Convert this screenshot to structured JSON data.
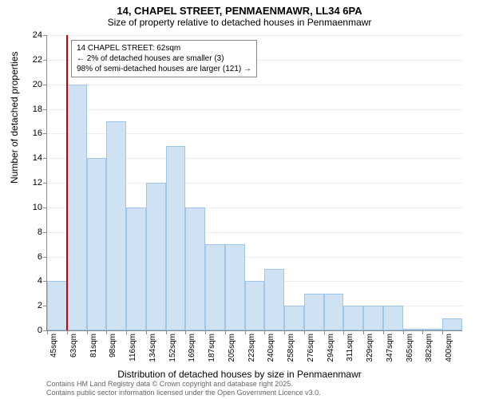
{
  "title_line1": "14, CHAPEL STREET, PENMAENMAWR, LL34 6PA",
  "title_line2": "Size of property relative to detached houses in Penmaenmawr",
  "ylabel": "Number of detached properties",
  "xlabel": "Distribution of detached houses by size in Penmaenmawr",
  "footer_line1": "Contains HM Land Registry data © Crown copyright and database right 2025.",
  "footer_line2": "Contains public sector information licensed under the Open Government Licence v3.0.",
  "chart": {
    "type": "histogram",
    "bar_fill": "#cfe2f3",
    "bar_stroke": "#9fc5e8",
    "marker_color": "#cc0000",
    "grid_color": "#eeeeee",
    "axis_color": "#888888",
    "background": "#ffffff",
    "text_color": "#000000",
    "ylim": [
      0,
      24
    ],
    "ytick_step": 2,
    "yticks": [
      0,
      2,
      4,
      6,
      8,
      10,
      12,
      14,
      16,
      18,
      20,
      22,
      24
    ],
    "bar_count": 21,
    "xtick_labels": [
      "45sqm",
      "63sqm",
      "81sqm",
      "98sqm",
      "116sqm",
      "134sqm",
      "152sqm",
      "169sqm",
      "187sqm",
      "205sqm",
      "223sqm",
      "240sqm",
      "258sqm",
      "276sqm",
      "294sqm",
      "311sqm",
      "329sqm",
      "347sqm",
      "365sqm",
      "382sqm",
      "400sqm"
    ],
    "values": [
      4,
      20,
      14,
      17,
      10,
      12,
      15,
      10,
      7,
      7,
      4,
      5,
      2,
      3,
      3,
      2,
      2,
      2,
      0,
      0,
      1
    ],
    "marker_bin_index": 1,
    "marker_rel_pos": 0.0,
    "annotation": {
      "line1": "14 CHAPEL STREET: 62sqm",
      "line2": "← 2% of detached houses are smaller (3)",
      "line3": "98% of semi-detached houses are larger (121) →"
    }
  }
}
